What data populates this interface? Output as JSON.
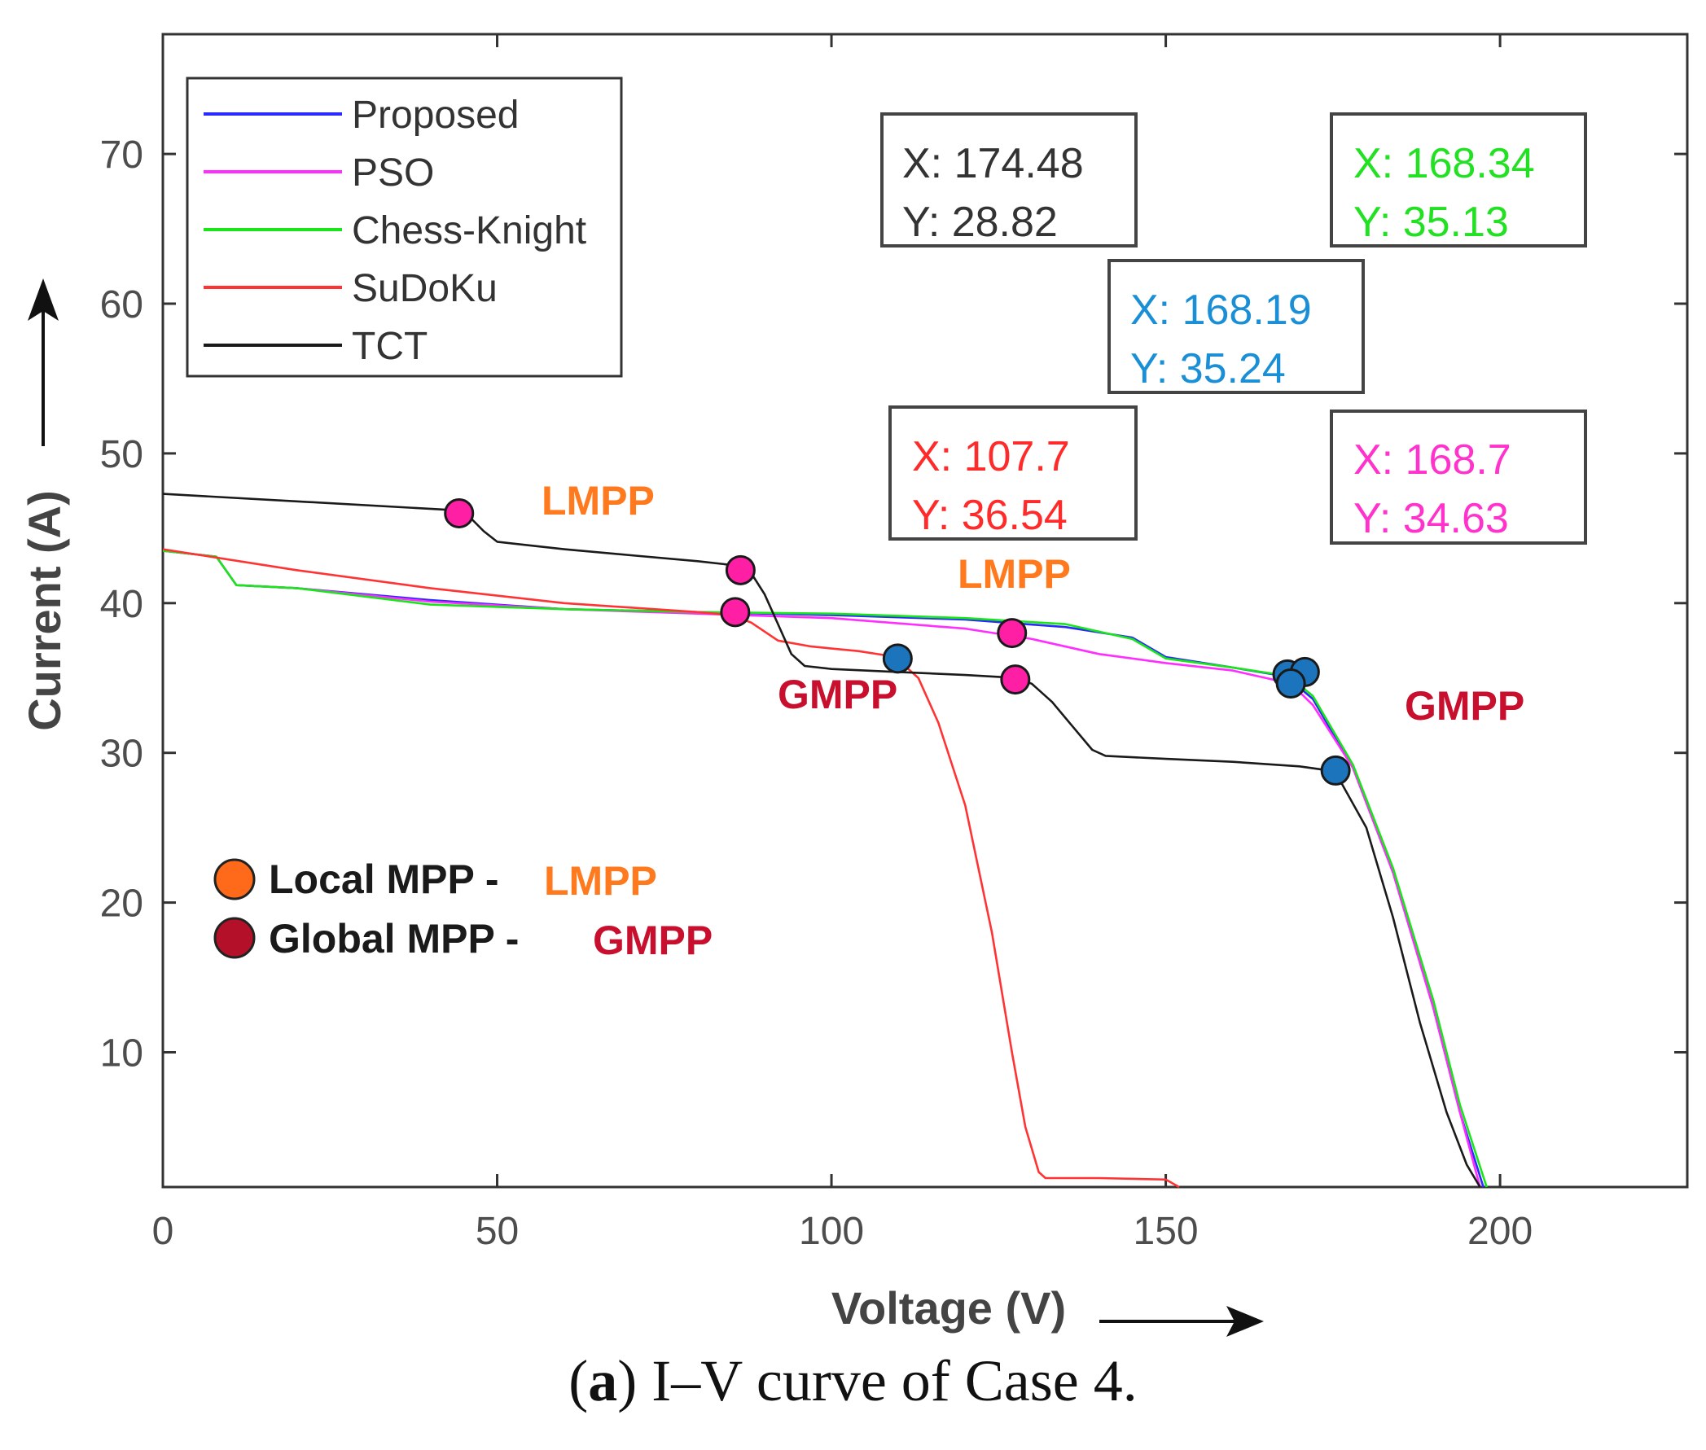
{
  "caption": {
    "letter": "a",
    "text": "I–V curve of Case 4."
  },
  "chart_data": {
    "type": "line",
    "title": "",
    "xlabel": "Voltage (V)",
    "ylabel": "Current (A)",
    "xlim": [
      0,
      228
    ],
    "ylim": [
      1,
      78
    ],
    "xticks": [
      0,
      50,
      100,
      150,
      200
    ],
    "yticks": [
      10,
      20,
      30,
      40,
      50,
      60,
      70
    ],
    "grid": false,
    "legend_position": "top-left",
    "series": [
      {
        "name": "Proposed",
        "color": "#2a2aff",
        "x": [
          0,
          8,
          11,
          20,
          40,
          60,
          80,
          100,
          120,
          135,
          145,
          150,
          160,
          168,
          172,
          178,
          184,
          190,
          194,
          197.5
        ],
        "y": [
          43.5,
          43.1,
          41.2,
          41.0,
          40.2,
          39.6,
          39.4,
          39.2,
          38.9,
          38.4,
          37.7,
          36.4,
          35.7,
          35.1,
          33.6,
          29.0,
          22.0,
          13.0,
          6.0,
          1.0
        ]
      },
      {
        "name": "PSO",
        "color": "#ff2dff",
        "x": [
          0,
          8,
          11,
          20,
          40,
          60,
          80,
          100,
          120,
          130,
          140,
          150,
          160,
          168.7,
          172,
          178,
          184,
          190,
          194,
          197
        ],
        "y": [
          43.5,
          43.1,
          41.2,
          41.0,
          40.1,
          39.6,
          39.3,
          39.0,
          38.3,
          37.6,
          36.6,
          36.0,
          35.5,
          34.63,
          33.2,
          29.0,
          22.0,
          13.0,
          6.0,
          1.0
        ]
      },
      {
        "name": "Chess-Knight",
        "color": "#19e619",
        "x": [
          0,
          8,
          11,
          20,
          40,
          60,
          80,
          100,
          120,
          135,
          145,
          150,
          160,
          168.34,
          172,
          178,
          184,
          190,
          194,
          198
        ],
        "y": [
          43.5,
          43.1,
          41.2,
          41.0,
          39.9,
          39.6,
          39.4,
          39.3,
          39.0,
          38.6,
          37.6,
          36.3,
          35.7,
          35.13,
          33.8,
          29.2,
          22.3,
          13.5,
          6.5,
          1.0
        ]
      },
      {
        "name": "SuDoKu",
        "color": "#ff3333",
        "x": [
          0,
          20,
          40,
          60,
          80,
          85,
          88,
          92,
          97,
          104,
          107.7,
          110,
          113,
          116,
          120,
          124,
          127,
          129,
          131,
          132,
          140,
          150,
          152
        ],
        "y": [
          43.6,
          42.2,
          41.0,
          40.0,
          39.4,
          39.2,
          38.7,
          37.5,
          37.1,
          36.8,
          36.54,
          36.2,
          35.0,
          32.0,
          26.5,
          18.0,
          10.0,
          5.0,
          2.0,
          1.6,
          1.6,
          1.5,
          1.0
        ]
      },
      {
        "name": "TCT",
        "color": "#1a1a1a",
        "x": [
          0,
          20,
          44,
          46,
          48,
          50,
          60,
          70,
          80,
          86,
          88,
          90,
          92,
          94,
          96,
          100,
          110,
          120,
          128,
          130,
          133,
          136,
          139,
          141,
          150,
          160,
          170,
          174.48,
          176,
          180,
          184,
          188,
          192,
          195,
          197
        ],
        "y": [
          47.3,
          46.8,
          46.2,
          45.7,
          44.8,
          44.1,
          43.6,
          43.2,
          42.8,
          42.5,
          42.0,
          40.6,
          38.6,
          36.6,
          35.8,
          35.6,
          35.4,
          35.2,
          35.0,
          34.6,
          33.4,
          31.8,
          30.2,
          29.8,
          29.6,
          29.4,
          29.1,
          28.82,
          28.2,
          25.0,
          19.0,
          12.0,
          6.0,
          2.5,
          1.0
        ]
      }
    ],
    "markers": [
      {
        "kind": "local",
        "color": "#ff1fa5",
        "x": 44.3,
        "y": 46.0
      },
      {
        "kind": "local",
        "color": "#ff1fa5",
        "x": 86.4,
        "y": 42.2
      },
      {
        "kind": "local",
        "color": "#ff1fa5",
        "x": 85.6,
        "y": 39.4
      },
      {
        "kind": "local",
        "color": "#ff1fa5",
        "x": 127.0,
        "y": 38.0
      },
      {
        "kind": "local",
        "color": "#ff1fa5",
        "x": 127.5,
        "y": 34.9
      },
      {
        "kind": "global",
        "color": "#1c75bc",
        "x": 109.9,
        "y": 36.3
      },
      {
        "kind": "global",
        "color": "#1c75bc",
        "x": 168.2,
        "y": 35.24
      },
      {
        "kind": "global",
        "color": "#1c75bc",
        "x": 170.8,
        "y": 35.4
      },
      {
        "kind": "global",
        "color": "#1c75bc",
        "x": 168.7,
        "y": 34.63
      },
      {
        "kind": "global",
        "color": "#1c75bc",
        "x": 175.4,
        "y": 28.82
      }
    ],
    "datatips": [
      {
        "color": "#333333",
        "x_label": "X: 174.48",
        "y_label": "Y: 28.82"
      },
      {
        "color": "#22e022",
        "x_label": "X: 168.34",
        "y_label": "Y: 35.13"
      },
      {
        "color": "#1b8fd6",
        "x_label": "X: 168.19",
        "y_label": "Y: 35.24"
      },
      {
        "color": "#ff2a2a",
        "x_label": "X: 107.7",
        "y_label": "Y: 36.54"
      },
      {
        "color": "#ff33cc",
        "x_label": "X: 168.7",
        "y_label": "Y: 34.63"
      }
    ],
    "annotations": [
      {
        "text": "LMPP",
        "color": "#ff7a1f"
      },
      {
        "text": "LMPP",
        "color": "#ff7a1f"
      },
      {
        "text": "GMPP",
        "color": "#c8102e"
      },
      {
        "text": "GMPP",
        "color": "#c8102e"
      }
    ],
    "mpp_legend": [
      {
        "label": "Local MPP -",
        "abbr": "LMPP",
        "dot_color": "#ff6a1a",
        "abbr_color": "#ff7a1f"
      },
      {
        "label": "Global MPP -",
        "abbr": "GMPP",
        "dot_color": "#b5102a",
        "abbr_color": "#c8102e"
      }
    ]
  }
}
